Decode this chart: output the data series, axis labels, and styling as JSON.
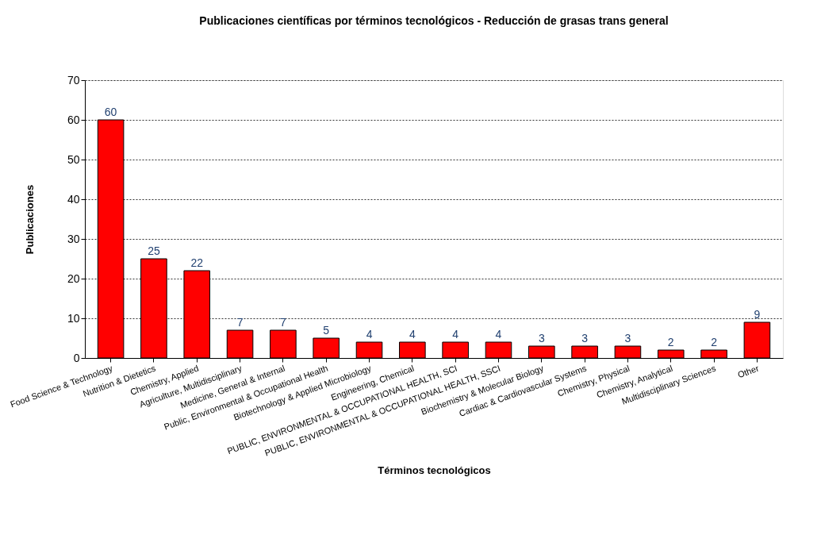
{
  "chart_data": {
    "type": "bar",
    "title": "Publicaciones científicas  por términos tecnológicos  - Reducción de grasas trans general",
    "xlabel": "Términos tecnológicos",
    "ylabel": "Publicaciones",
    "categories": [
      "Food Science & Technology",
      "Nutrition & Dietetics",
      "Chemistry, Applied",
      "Agriculture, Multidisciplinary",
      "Medicine, General & Internal",
      "Public, Environmental & Occupational Health",
      "Biotechnology & Applied Microbiology",
      "Engineering, Chemical",
      "PUBLIC, ENVIRONMENTAL & OCCUPATIONAL HEALTH, SCI",
      "PUBLIC, ENVIRONMENTAL & OCCUPATIONAL HEALTH, SSCI",
      "Biochemistry & Molecular Biology",
      "Cardiac & Cardiovascular Systems",
      "Chemistry, Physical",
      "Chemistry, Analytical",
      "Multidisciplinary Sciences",
      "Other"
    ],
    "values": [
      60,
      25,
      22,
      7,
      7,
      5,
      4,
      4,
      4,
      4,
      3,
      3,
      3,
      2,
      2,
      9
    ],
    "color": "#ff0000",
    "ylim": [
      0,
      70
    ],
    "yticks": [
      0,
      10,
      20,
      30,
      40,
      50,
      60,
      70
    ],
    "grid": "y",
    "data_labels": true
  }
}
